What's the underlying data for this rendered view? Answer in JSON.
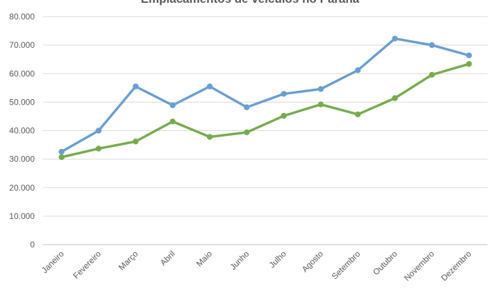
{
  "chart_data": {
    "type": "line",
    "title": "Emplacamentos de veículos no Paraná",
    "categories": [
      "Janeiro",
      "Fevereiro",
      "Março",
      "Abril",
      "Maio",
      "Junho",
      "Julho",
      "Agosto",
      "Setembro",
      "Outubro",
      "Novembro",
      "Dezembro"
    ],
    "y_tick_labels": [
      "0",
      "10.000",
      "20.000",
      "30.000",
      "40.000",
      "50.000",
      "60.000",
      "70.000",
      "80.000"
    ],
    "ylim": [
      0,
      80000
    ],
    "grid": true,
    "series": [
      {
        "color": "#6a9fcf",
        "values": [
          32600,
          40000,
          55500,
          48900,
          55500,
          48200,
          52900,
          54600,
          61200,
          72300,
          70000,
          66400
        ]
      },
      {
        "color": "#77ab4f",
        "values": [
          30700,
          33700,
          36200,
          43200,
          37800,
          39400,
          45200,
          49200,
          45700,
          51400,
          59600,
          63400
        ]
      }
    ]
  }
}
